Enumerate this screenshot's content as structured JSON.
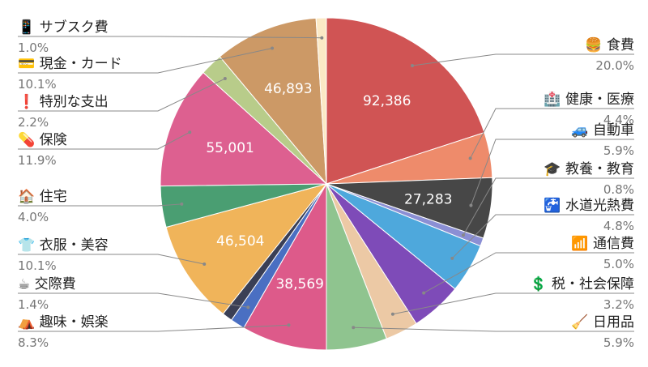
{
  "chart_data": {
    "type": "pie",
    "categories": [
      "🍔 食費",
      "🏥 健康・医療",
      "🚙 自動車",
      "🎓 教養・教育",
      "🚰 水道光熱費",
      "📶 通信費",
      "💲 税・社会保障",
      "🧹 日用品",
      "⛺ 趣味・娯楽",
      "☕ 交際費",
      null,
      "👕 衣服・美容",
      "🏠 住宅",
      "💊 保険",
      "❗ 特別な支出",
      "💳 現金・カード",
      "📱 サブスク費"
    ],
    "values": [
      20.0,
      4.4,
      5.9,
      0.8,
      4.8,
      5.0,
      3.2,
      5.9,
      8.3,
      1.4,
      1.0,
      10.1,
      4.0,
      11.9,
      2.2,
      10.1,
      1.0
    ],
    "value_labels": [
      "20.0%",
      "4.4%",
      "5.9%",
      "0.8%",
      "4.8%",
      "5.0%",
      "3.2%",
      "5.9%",
      "8.3%",
      "1.4%",
      null,
      "10.1%",
      "4.0%",
      "11.9%",
      "2.2%",
      "10.1%",
      "1.0%"
    ],
    "amount_labels": [
      "92,386",
      null,
      "27,283",
      null,
      null,
      null,
      null,
      null,
      "38,569",
      null,
      null,
      "46,504",
      null,
      "55,001",
      null,
      "46,893",
      null
    ],
    "colors": [
      "#d05454",
      "#ee8b6b",
      "#474747",
      "#8b8fd4",
      "#4ea8dc",
      "#7e4bb8",
      "#ecc9a5",
      "#8fc48f",
      "#dd5a8a",
      "#4a6fc2",
      "#3a3f55",
      "#f0b45a",
      "#4a9e72",
      "#dd6090",
      "#b8cc8a",
      "#cc9966",
      "#fbe9c5"
    ]
  }
}
